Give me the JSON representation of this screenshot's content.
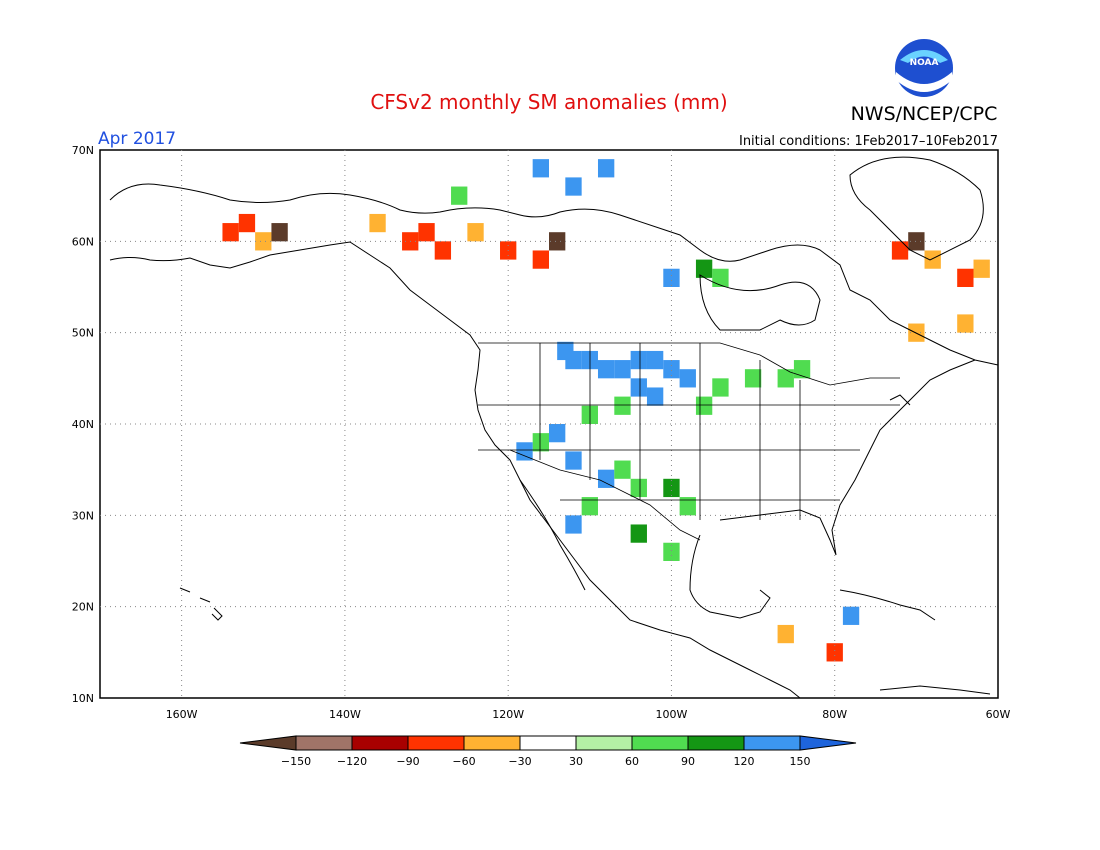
{
  "title": "CFSv2 monthly SM anomalies (mm)",
  "agency": "NWS/NCEP/CPC",
  "logo_text": "NOAA",
  "month_label": "Apr 2017",
  "initial_conditions": "Initial conditions: 1Feb2017–10Feb2017",
  "axes": {
    "lat_labels": [
      "70N",
      "60N",
      "50N",
      "40N",
      "30N",
      "20N",
      "10N"
    ],
    "lon_labels": [
      "160W",
      "140W",
      "120W",
      "100W",
      "80W",
      "60W"
    ]
  },
  "legend": {
    "ticks": [
      "−150",
      "−120",
      "−90",
      "−60",
      "−30",
      "30",
      "60",
      "90",
      "120",
      "150"
    ],
    "colors": [
      "#5b3b2a",
      "#a07468",
      "#a80000",
      "#ff3300",
      "#ffb232",
      "#ffffff",
      "#b4f0a5",
      "#50dc50",
      "#149614",
      "#3c96f0",
      "#1e64dc"
    ]
  },
  "colors": {
    "title": "#e01010",
    "month": "#2050e0",
    "coast": "#000000",
    "grid": "#888888"
  },
  "chart_data": {
    "type": "heatmap",
    "title": "CFSv2 monthly SM anomalies (mm)",
    "lon_range": [
      -170,
      -60
    ],
    "lat_range": [
      10,
      70
    ],
    "units": "mm",
    "cells": [
      [
        -113,
        48,
        "blue"
      ],
      [
        -112,
        47,
        "blue"
      ],
      [
        -110,
        47,
        "blue"
      ],
      [
        -108,
        46,
        "blue"
      ],
      [
        -106,
        46,
        "blue"
      ],
      [
        -104,
        47,
        "blue"
      ],
      [
        -102,
        47,
        "blue"
      ],
      [
        -100,
        46,
        "blue"
      ],
      [
        -98,
        45,
        "blue"
      ],
      [
        -104,
        44,
        "blue"
      ],
      [
        -102,
        43,
        "blue"
      ],
      [
        -106,
        42,
        "green"
      ],
      [
        -110,
        41,
        "green"
      ],
      [
        -114,
        39,
        "blue"
      ],
      [
        -116,
        38,
        "green"
      ],
      [
        -118,
        37,
        "blue"
      ],
      [
        -112,
        36,
        "blue"
      ],
      [
        -108,
        34,
        "blue"
      ],
      [
        -106,
        35,
        "green"
      ],
      [
        -104,
        33,
        "green"
      ],
      [
        -100,
        33,
        "dkgreen"
      ],
      [
        -98,
        31,
        "green"
      ],
      [
        -110,
        31,
        "green"
      ],
      [
        -112,
        29,
        "blue"
      ],
      [
        -104,
        28,
        "dkgreen"
      ],
      [
        -100,
        26,
        "green"
      ],
      [
        -96,
        42,
        "green"
      ],
      [
        -94,
        44,
        "green"
      ],
      [
        -90,
        45,
        "green"
      ],
      [
        -86,
        45,
        "green"
      ],
      [
        -84,
        46,
        "green"
      ],
      [
        -132,
        60,
        "red"
      ],
      [
        -130,
        61,
        "red"
      ],
      [
        -128,
        59,
        "red"
      ],
      [
        -124,
        61,
        "orange"
      ],
      [
        -120,
        59,
        "red"
      ],
      [
        -116,
        58,
        "red"
      ],
      [
        -114,
        60,
        "brown"
      ],
      [
        -152,
        62,
        "red"
      ],
      [
        -154,
        61,
        "red"
      ],
      [
        -150,
        60,
        "orange"
      ],
      [
        -148,
        61,
        "brown"
      ],
      [
        -136,
        62,
        "orange"
      ],
      [
        -70,
        60,
        "brown"
      ],
      [
        -72,
        59,
        "red"
      ],
      [
        -68,
        58,
        "orange"
      ],
      [
        -64,
        56,
        "red"
      ],
      [
        -62,
        57,
        "orange"
      ],
      [
        -70,
        50,
        "orange"
      ],
      [
        -64,
        51,
        "orange"
      ],
      [
        -112,
        66,
        "blue"
      ],
      [
        -116,
        68,
        "blue"
      ],
      [
        -108,
        68,
        "blue"
      ],
      [
        -126,
        65,
        "green"
      ],
      [
        -100,
        56,
        "blue"
      ],
      [
        -96,
        57,
        "dkgreen"
      ],
      [
        -94,
        56,
        "green"
      ],
      [
        -80,
        15,
        "red"
      ],
      [
        -78,
        19,
        "blue"
      ],
      [
        -86,
        17,
        "orange"
      ]
    ]
  }
}
